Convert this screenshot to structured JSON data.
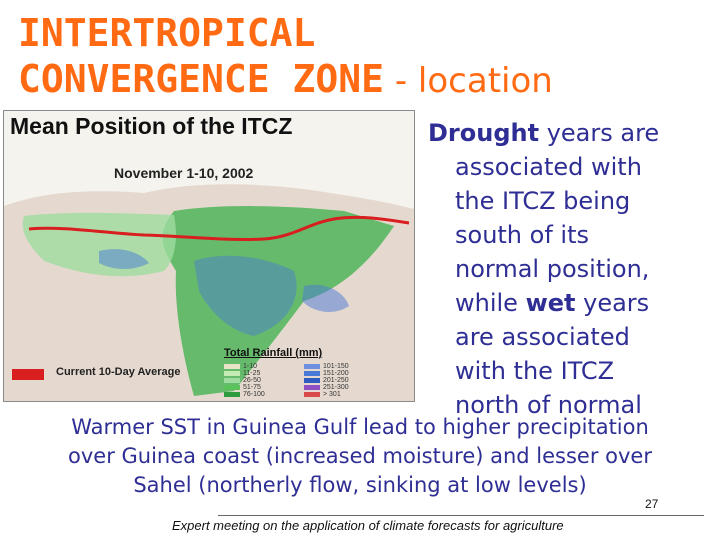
{
  "title": {
    "main_line1": "INTERTROPICAL",
    "main_line2": "CONVERGENCE ZONE",
    "suffix": " - location"
  },
  "map": {
    "title": "Mean Position of the ITCZ",
    "date": "November 1-10, 2002",
    "legend_line_label": "Current 10-Day Average",
    "rainfall_title": "Total Rainfall (mm)",
    "rainfall_classes": [
      "1-10",
      "11-25",
      "26-50",
      "51-75",
      "76-100",
      "101-150",
      "151-200",
      "201-250",
      "251-300",
      "> 301"
    ],
    "colors": {
      "itcz_line": "#d81e1e",
      "rain_light": "#9fdc9f",
      "rain_mid": "#3ab04a",
      "rain_heavy": "#4a7ad8",
      "dry": "#d8c2b6",
      "ocean": "#f4f3ee"
    },
    "icon": "africa-rainfall-map"
  },
  "right_text": {
    "lines": [
      {
        "bold": "Drought",
        "rest": " years are"
      },
      {
        "text": "associated with"
      },
      {
        "text": "the ITCZ being"
      },
      {
        "text": "south of its"
      },
      {
        "text": "normal position,"
      },
      {
        "pre": "while ",
        "bold": "wet",
        "rest": " years"
      },
      {
        "text": "are associated"
      },
      {
        "text": "with the ITCZ"
      },
      {
        "text": "north of normal"
      }
    ]
  },
  "bottom_text": {
    "lines": [
      "Warmer SST in Guinea Gulf lead to higher precipitation",
      "over Guinea coast (increased moisture) and lesser over",
      "Sahel (northerly flow, sinking at low levels)"
    ]
  },
  "page_number": "27",
  "footer": "Expert meeting on the application of climate forecasts for agriculture"
}
